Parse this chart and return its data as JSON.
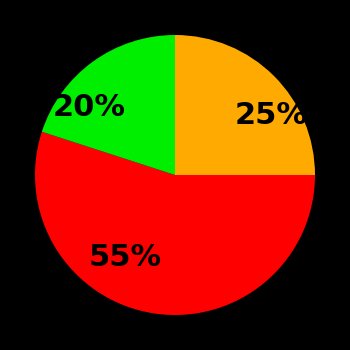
{
  "slices": [
    25,
    55,
    20
  ],
  "labels": [
    "25%",
    "55%",
    "20%"
  ],
  "colors": [
    "#ffaa00",
    "#ff0000",
    "#00ee00"
  ],
  "startangle": 90,
  "counterclock": false,
  "background_color": "#000000",
  "text_color": "#000000",
  "font_size": 22,
  "font_weight": "bold",
  "labeldistance": 0.6
}
